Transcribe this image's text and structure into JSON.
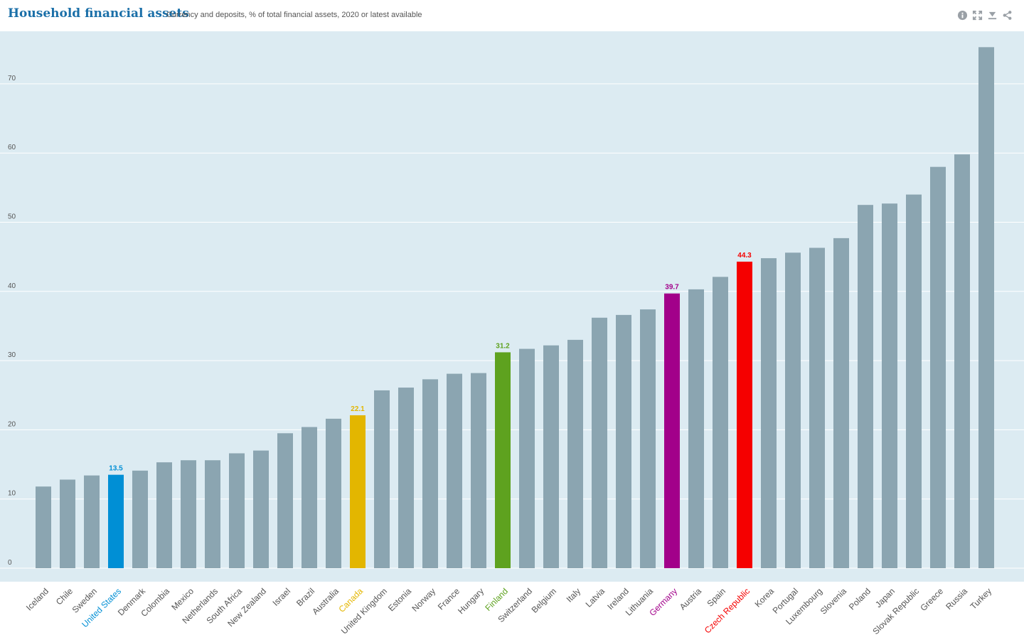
{
  "header": {
    "title": "Household financial assets",
    "subtitle": "Currency and deposits, % of total financial assets, 2020 or latest available",
    "tools": [
      {
        "name": "info-icon",
        "color": "#9aa0a6"
      },
      {
        "name": "fullscreen-icon",
        "color": "#9aa0a6"
      },
      {
        "name": "download-icon",
        "color": "#9aa0a6"
      },
      {
        "name": "share-icon",
        "color": "#9aa0a6"
      }
    ]
  },
  "chart_data": {
    "type": "bar",
    "title": "Household financial assets",
    "subtitle": "Currency and deposits, % of total financial assets, 2020 or latest available",
    "xlabel": "",
    "ylabel": "",
    "ylim": [
      0,
      78
    ],
    "yticks": [
      0,
      10,
      20,
      30,
      40,
      50,
      60,
      70
    ],
    "grid": true,
    "default_color": "#8ba5b1",
    "categories": [
      "Iceland",
      "Chile",
      "Sweden",
      "United States",
      "Denmark",
      "Colombia",
      "Mexico",
      "Netherlands",
      "South Africa",
      "New Zealand",
      "Israel",
      "Brazil",
      "Australia",
      "Canada",
      "United Kingdom",
      "Estonia",
      "Norway",
      "France",
      "Hungary",
      "Finland",
      "Switzerland",
      "Belgium",
      "Italy",
      "Latvia",
      "Ireland",
      "Lithuania",
      "Germany",
      "Austria",
      "Spain",
      "Czech Republic",
      "Korea",
      "Portugal",
      "Luxembourg",
      "Slovenia",
      "Poland",
      "Japan",
      "Slovak Republic",
      "Greece",
      "Russia",
      "Turkey"
    ],
    "values": [
      11.8,
      12.8,
      13.4,
      13.5,
      14.1,
      15.3,
      15.6,
      15.6,
      16.6,
      17.0,
      19.5,
      20.4,
      21.6,
      22.1,
      25.7,
      26.1,
      27.3,
      28.1,
      28.2,
      31.2,
      31.7,
      32.2,
      33.0,
      36.2,
      36.6,
      37.4,
      39.7,
      40.3,
      42.1,
      44.3,
      44.8,
      45.6,
      46.3,
      47.7,
      52.5,
      52.7,
      54.0,
      58.0,
      59.8,
      75.3
    ],
    "highlights": [
      {
        "category": "United States",
        "value": 13.5,
        "label": "13.5",
        "color": "#008fd5"
      },
      {
        "category": "Canada",
        "value": 22.1,
        "label": "22.1",
        "color": "#e3b600"
      },
      {
        "category": "Finland",
        "value": 31.2,
        "label": "31.2",
        "color": "#5ea21f"
      },
      {
        "category": "Germany",
        "value": 39.7,
        "label": "39.7",
        "color": "#a2008a"
      },
      {
        "category": "Czech Republic",
        "value": 44.3,
        "label": "44.3",
        "color": "#f50000"
      }
    ]
  }
}
